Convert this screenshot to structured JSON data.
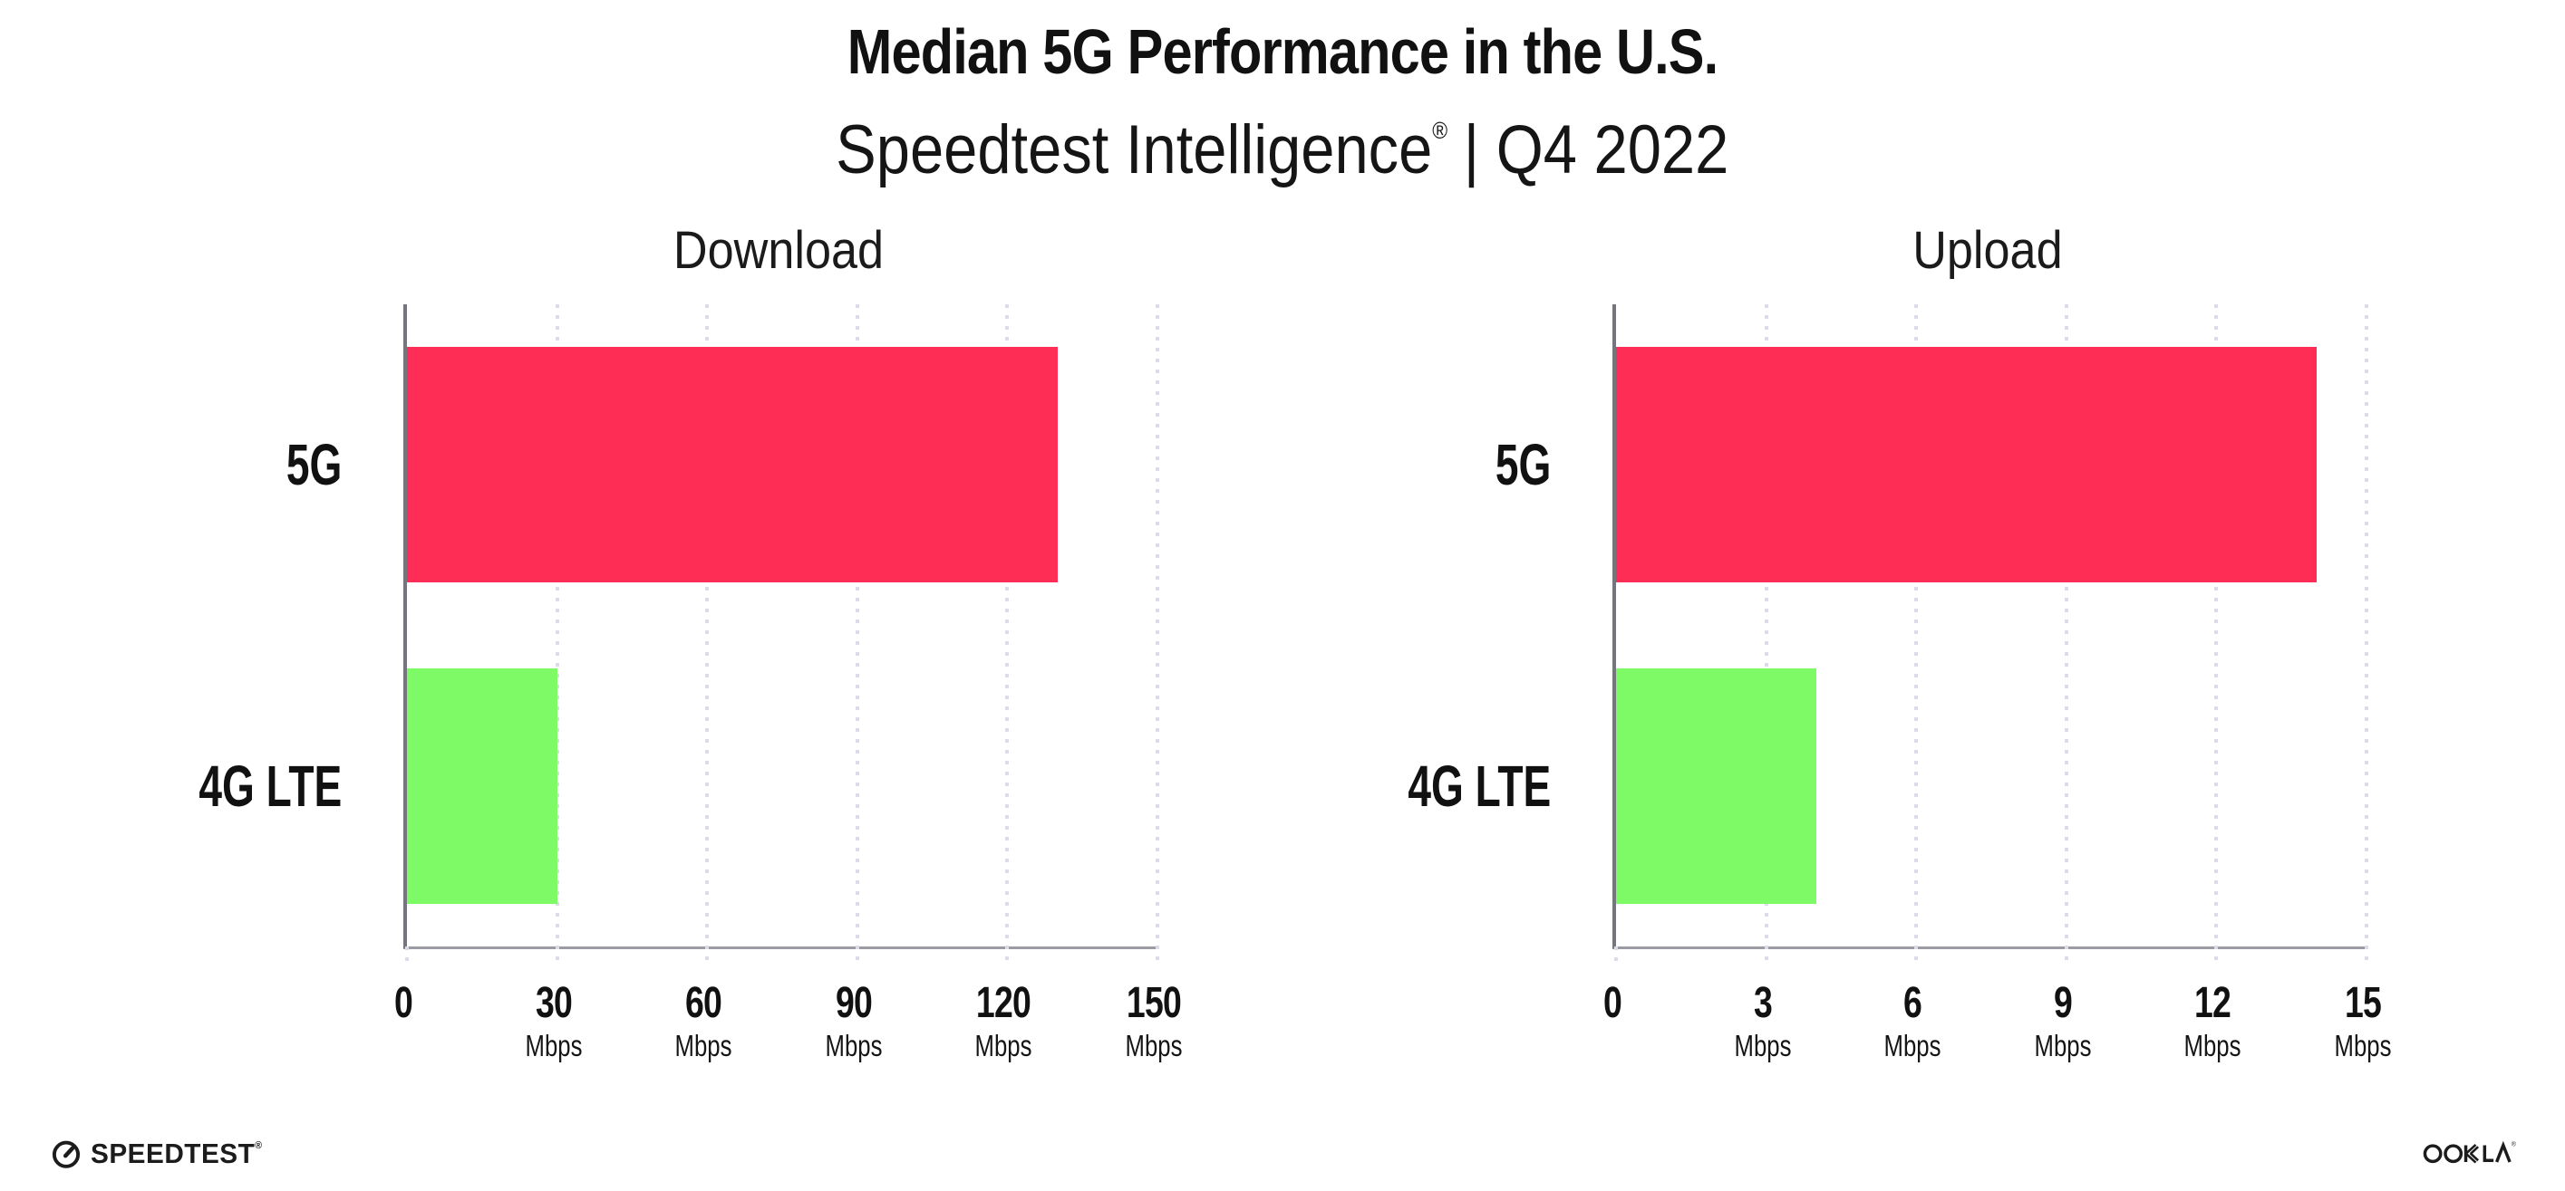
{
  "header": {
    "title": "Median 5G Performance in the U.S.",
    "subtitle_brand": "Speedtest Intelligence",
    "subtitle_reg": "®",
    "subtitle_rest": "| Q4 2022"
  },
  "footer": {
    "speedtest_label": "SPEEDTEST",
    "speedtest_reg": "®",
    "ookla_label": "OOKLA",
    "ookla_reg": "®"
  },
  "colors": {
    "bar_5g": "#FD2D55",
    "bar_4g_lte": "#7DFA66",
    "gridline_dots": "#DCDCE8",
    "y_axis": "#75757E",
    "x_axis": "#9B9BA3",
    "text": "#111111"
  },
  "chart_data": [
    {
      "type": "bar",
      "orientation": "horizontal",
      "title": "Download",
      "categories": [
        "5G",
        "4G LTE"
      ],
      "values": [
        130,
        30
      ],
      "unit": "Mbps",
      "xlabel": "Mbps",
      "xlim": [
        0,
        150
      ],
      "ticks": [
        0,
        30,
        60,
        90,
        120,
        150
      ],
      "bar_colors": [
        "#FD2D55",
        "#7DFA66"
      ],
      "grid": "dotted-vertical",
      "legend": "none"
    },
    {
      "type": "bar",
      "orientation": "horizontal",
      "title": "Upload",
      "categories": [
        "5G",
        "4G LTE"
      ],
      "values": [
        14,
        4
      ],
      "unit": "Mbps",
      "xlabel": "Mbps",
      "xlim": [
        0,
        15
      ],
      "ticks": [
        0,
        3,
        6,
        9,
        12,
        15
      ],
      "bar_colors": [
        "#FD2D55",
        "#7DFA66"
      ],
      "grid": "dotted-vertical",
      "legend": "none"
    }
  ]
}
